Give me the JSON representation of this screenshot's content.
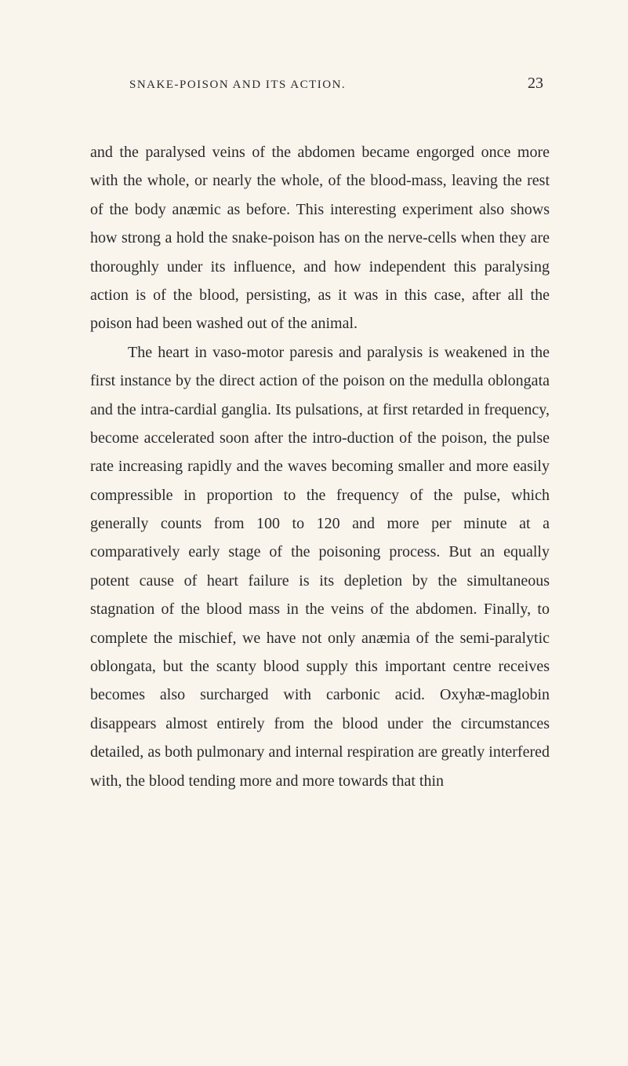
{
  "header": {
    "title": "SNAKE-POISON AND ITS ACTION.",
    "pageNumber": "23"
  },
  "paragraphs": [
    {
      "text": "and the paralysed veins of the abdomen became engorged once more with the whole, or nearly the whole, of the blood-mass, leaving the rest of the body anæmic as before. This interesting experiment also shows how strong a hold the snake-poison has on the nerve-cells when they are thoroughly under its influence, and how independent this paralysing action is of the blood, persisting, as it was in this case, after all the poison had been washed out of the animal.",
      "indent": false
    },
    {
      "text": "The heart in vaso-motor paresis and paralysis is weakened in the first instance by the direct action of the poison on the medulla oblongata and the intra-cardial ganglia. Its pulsations, at first retarded in frequency, become accelerated soon after the intro-duction of the poison, the pulse rate increasing rapidly and the waves becoming smaller and more easily compressible in proportion to the frequency of the pulse, which generally counts from 100 to 120 and more per minute at a comparatively early stage of the poisoning process. But an equally potent cause of heart failure is its depletion by the simultaneous stagnation of the blood mass in the veins of the abdomen. Finally, to complete the mischief, we have not only anæmia of the semi-paralytic oblongata, but the scanty blood supply this important centre receives becomes also surcharged with carbonic acid. Oxyhæ-maglobin disappears almost entirely from the blood under the circumstances detailed, as both pulmonary and internal respiration are greatly interfered with, the blood tending more and more towards that thin",
      "indent": true
    }
  ],
  "colors": {
    "background": "#f9f5ed",
    "text": "#2a2a2a"
  },
  "typography": {
    "body_fontsize": 20,
    "header_fontsize": 15,
    "pagenum_fontsize": 20,
    "line_height": 1.82,
    "font_family": "Georgia, 'Times New Roman', serif"
  }
}
